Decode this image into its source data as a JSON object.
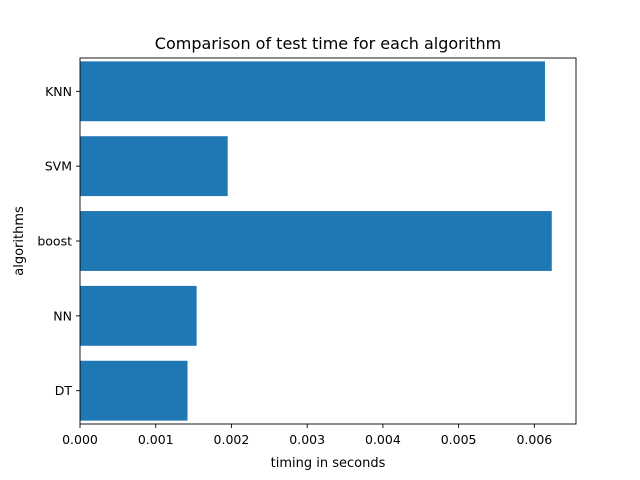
{
  "chart_data": {
    "type": "bar",
    "orientation": "horizontal",
    "title": "Comparison of test time for each algorithm",
    "xlabel": "timing in seconds",
    "ylabel": "algorithms",
    "categories": [
      "DT",
      "NN",
      "boost",
      "SVM",
      "KNN"
    ],
    "values": [
      0.00142,
      0.00154,
      0.00623,
      0.00195,
      0.00614
    ],
    "xlim": [
      0,
      0.00655
    ],
    "xticks": [
      "0.000",
      "0.001",
      "0.002",
      "0.003",
      "0.004",
      "0.005",
      "0.006"
    ],
    "grid": false,
    "bar_color": "#1f77b4"
  }
}
